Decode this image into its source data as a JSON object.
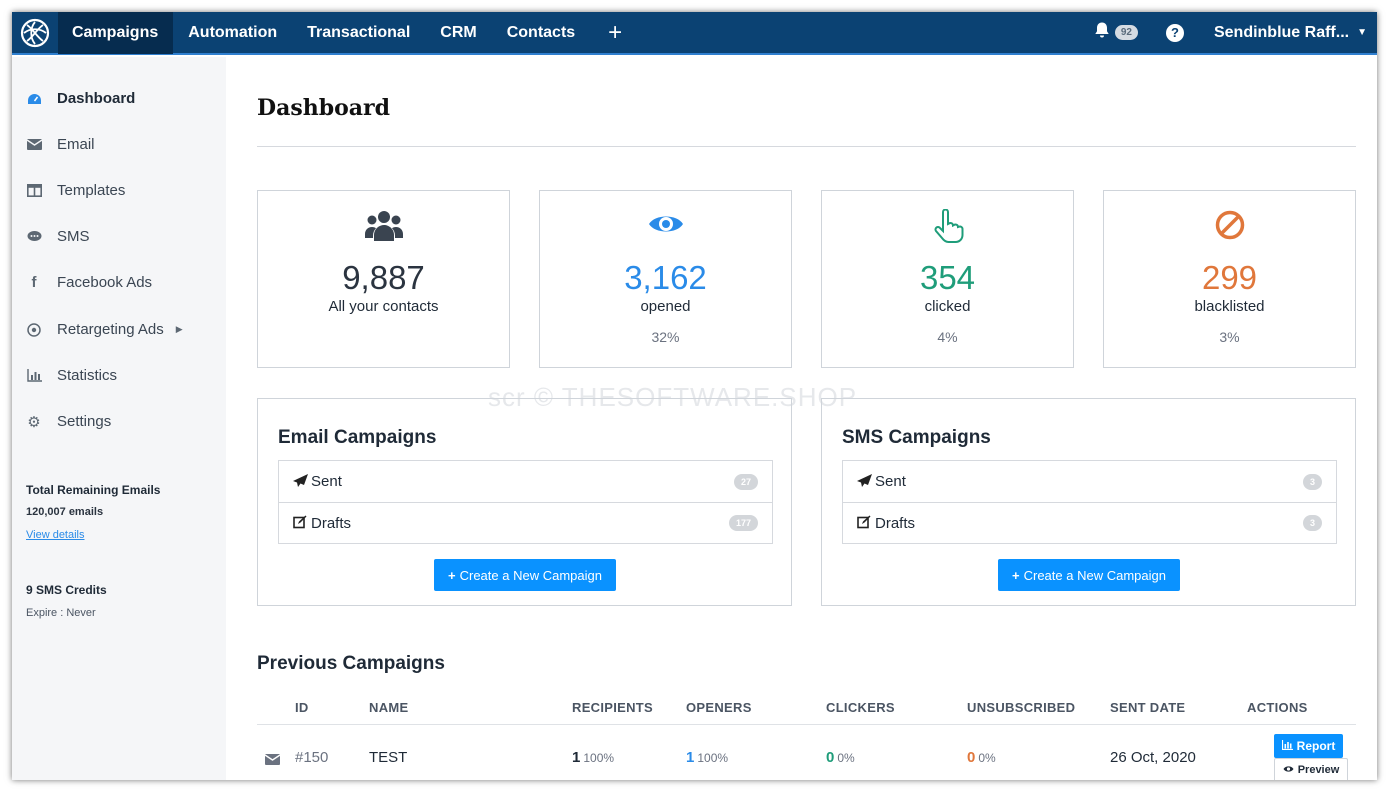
{
  "topnav": {
    "items": [
      "Campaigns",
      "Automation",
      "Transactional",
      "CRM",
      "Contacts"
    ],
    "plus": "+",
    "notifications": "92",
    "help": "?",
    "user": "Sendinblue Raff..."
  },
  "sidebar": {
    "items": [
      {
        "label": "Dashboard",
        "icon": "dashboard-gauge-icon"
      },
      {
        "label": "Email",
        "icon": "envelope-icon"
      },
      {
        "label": "Templates",
        "icon": "template-icon"
      },
      {
        "label": "SMS",
        "icon": "sms-bubble-icon"
      },
      {
        "label": "Facebook Ads",
        "icon": "facebook-icon"
      },
      {
        "label": "Retargeting Ads",
        "icon": "target-icon"
      },
      {
        "label": "Statistics",
        "icon": "bar-chart-icon"
      },
      {
        "label": "Settings",
        "icon": "gear-icon"
      }
    ],
    "remaining_title": "Total Remaining Emails",
    "remaining_value": "120,007 emails",
    "view_details": "View details",
    "sms_credits": "9 SMS Credits",
    "sms_expire": "Expire : Never"
  },
  "main": {
    "title": "Dashboard",
    "stats": [
      {
        "value": "9,887",
        "label": "All your contacts",
        "pct": "",
        "color": "#2b3440",
        "icon": "users-icon"
      },
      {
        "value": "3,162",
        "label": "opened",
        "pct": "32%",
        "color": "#2a8be8",
        "icon": "eye-icon"
      },
      {
        "value": "354",
        "label": "clicked",
        "pct": "4%",
        "color": "#1f9d7a",
        "icon": "pointer-hand-icon"
      },
      {
        "value": "299",
        "label": "blacklisted",
        "pct": "3%",
        "color": "#e0773b",
        "icon": "ban-icon"
      }
    ],
    "email_panel": {
      "title": "Email Campaigns",
      "sent_label": "Sent",
      "sent_count": "27",
      "drafts_label": "Drafts",
      "drafts_count": "177",
      "button": "Create a New Campaign"
    },
    "sms_panel": {
      "title": "SMS Campaigns",
      "sent_label": "Sent",
      "sent_count": "3",
      "drafts_label": "Drafts",
      "drafts_count": "3",
      "button": "Create a New Campaign"
    },
    "previous": {
      "title": "Previous Campaigns",
      "columns": [
        "ID",
        "NAME",
        "RECIPIENTS",
        "OPENERS",
        "CLICKERS",
        "UNSUBSCRIBED",
        "SENT DATE",
        "ACTIONS"
      ],
      "rows": [
        {
          "id": "#150",
          "name": "TEST",
          "recipients": "1",
          "recipients_pct": "100%",
          "openers": "1",
          "openers_pct": "100%",
          "clickers": "0",
          "clickers_pct": "0%",
          "unsubscribed": "0",
          "unsubscribed_pct": "0%",
          "sent_date": "26 Oct, 2020",
          "report": "Report",
          "preview": "Preview"
        }
      ]
    },
    "watermark": "scr © THESOFTWARE.SHOP"
  }
}
